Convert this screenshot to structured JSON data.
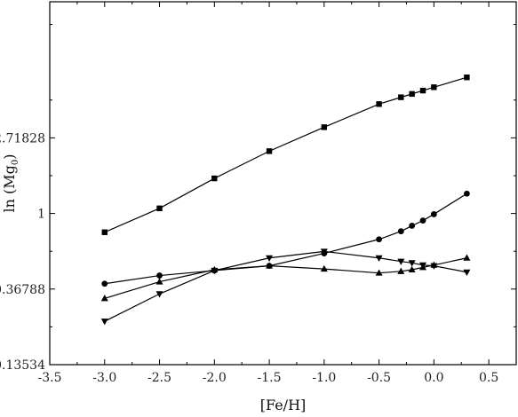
{
  "chart_data": {
    "type": "line",
    "title": "",
    "xlabel": "[Fe/H]",
    "ylabel": "ln (Mg",
    "ylabel_subscript": "0",
    "ylabel_suffix": ")",
    "xlim": [
      -3.5,
      0.75
    ],
    "ylim_ln": [
      -2,
      2.8
    ],
    "y_scale": "log_e",
    "x_ticks": [
      -3.5,
      -3.0,
      -2.5,
      -2.0,
      -1.5,
      -1.0,
      -0.5,
      0.0,
      0.5
    ],
    "x_tick_labels": [
      "-3.5",
      "-3.0",
      "-2.5",
      "-2.0",
      "-1.5",
      "-1.0",
      "-0.5",
      "0.0",
      "0.5"
    ],
    "y_ticks": [
      0.13534,
      0.36788,
      1,
      2.71828
    ],
    "y_tick_labels": [
      "0.13534",
      "0.36788",
      "1",
      "2.71828"
    ],
    "grid": false,
    "legend": "none",
    "series": [
      {
        "marker": "square",
        "x": [
          -3.0,
          -2.5,
          -2.0,
          -1.5,
          -1.0,
          -0.5,
          -0.3,
          -0.2,
          -0.1,
          0.0,
          0.3
        ],
        "y": [
          0.78,
          1.07,
          1.59,
          2.28,
          3.13,
          4.25,
          4.65,
          4.86,
          5.08,
          5.31,
          6.05
        ]
      },
      {
        "marker": "circle",
        "x": [
          -3.0,
          -2.5,
          -2.0,
          -1.5,
          -1.0,
          -0.5,
          -0.3,
          -0.2,
          -0.1,
          0.0,
          0.3
        ],
        "y": [
          0.395,
          0.44,
          0.47,
          0.5,
          0.59,
          0.71,
          0.79,
          0.85,
          0.91,
          0.99,
          1.3
        ]
      },
      {
        "marker": "triangle-up",
        "x": [
          -3.0,
          -2.5,
          -2.0,
          -1.5,
          -1.0,
          -0.5,
          -0.3,
          -0.2,
          -0.1,
          0.0,
          0.3
        ],
        "y": [
          0.325,
          0.405,
          0.475,
          0.5,
          0.48,
          0.455,
          0.465,
          0.475,
          0.49,
          0.505,
          0.555
        ]
      },
      {
        "marker": "triangle-down",
        "x": [
          -3.0,
          -2.5,
          -2.0,
          -1.5,
          -1.0,
          -0.5,
          -0.3,
          -0.2,
          -0.1,
          0.0,
          0.3
        ],
        "y": [
          0.24,
          0.345,
          0.47,
          0.555,
          0.605,
          0.555,
          0.53,
          0.52,
          0.505,
          0.5,
          0.46
        ]
      }
    ]
  }
}
